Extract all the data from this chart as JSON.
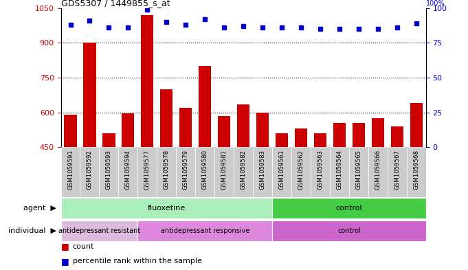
{
  "title": "GDS5307 / 1449855_s_at",
  "samples": [
    "GSM1059591",
    "GSM1059592",
    "GSM1059593",
    "GSM1059594",
    "GSM1059577",
    "GSM1059578",
    "GSM1059579",
    "GSM1059580",
    "GSM1059581",
    "GSM1059582",
    "GSM1059583",
    "GSM1059561",
    "GSM1059562",
    "GSM1059563",
    "GSM1059564",
    "GSM1059565",
    "GSM1059566",
    "GSM1059567",
    "GSM1059568"
  ],
  "counts": [
    590,
    900,
    510,
    595,
    1020,
    700,
    620,
    800,
    585,
    635,
    600,
    510,
    530,
    510,
    555,
    555,
    575,
    540,
    640
  ],
  "percentile": [
    88,
    91,
    86,
    86,
    99,
    90,
    88,
    92,
    86,
    87,
    86,
    86,
    86,
    85,
    85,
    85,
    85,
    86,
    89
  ],
  "ylim_left": [
    450,
    1050
  ],
  "ylim_right": [
    0,
    100
  ],
  "yticks_left": [
    450,
    600,
    750,
    900,
    1050
  ],
  "yticks_right": [
    0,
    25,
    50,
    75,
    100
  ],
  "bar_color": "#cc0000",
  "dot_color": "#0000cc",
  "agent_groups": [
    {
      "label": "fluoxetine",
      "start": 0,
      "end": 11,
      "color": "#aaeebb"
    },
    {
      "label": "control",
      "start": 11,
      "end": 19,
      "color": "#44cc44"
    }
  ],
  "individual_groups": [
    {
      "label": "antidepressant resistant",
      "start": 0,
      "end": 4,
      "color": "#ddbbdd"
    },
    {
      "label": "antidepressant responsive",
      "start": 4,
      "end": 11,
      "color": "#dd88dd"
    },
    {
      "label": "control",
      "start": 11,
      "end": 19,
      "color": "#cc66cc"
    }
  ],
  "legend_count_color": "#cc0000",
  "legend_dot_color": "#0000cc",
  "bg_color": "#ffffff",
  "xticklabel_bg": "#cccccc"
}
